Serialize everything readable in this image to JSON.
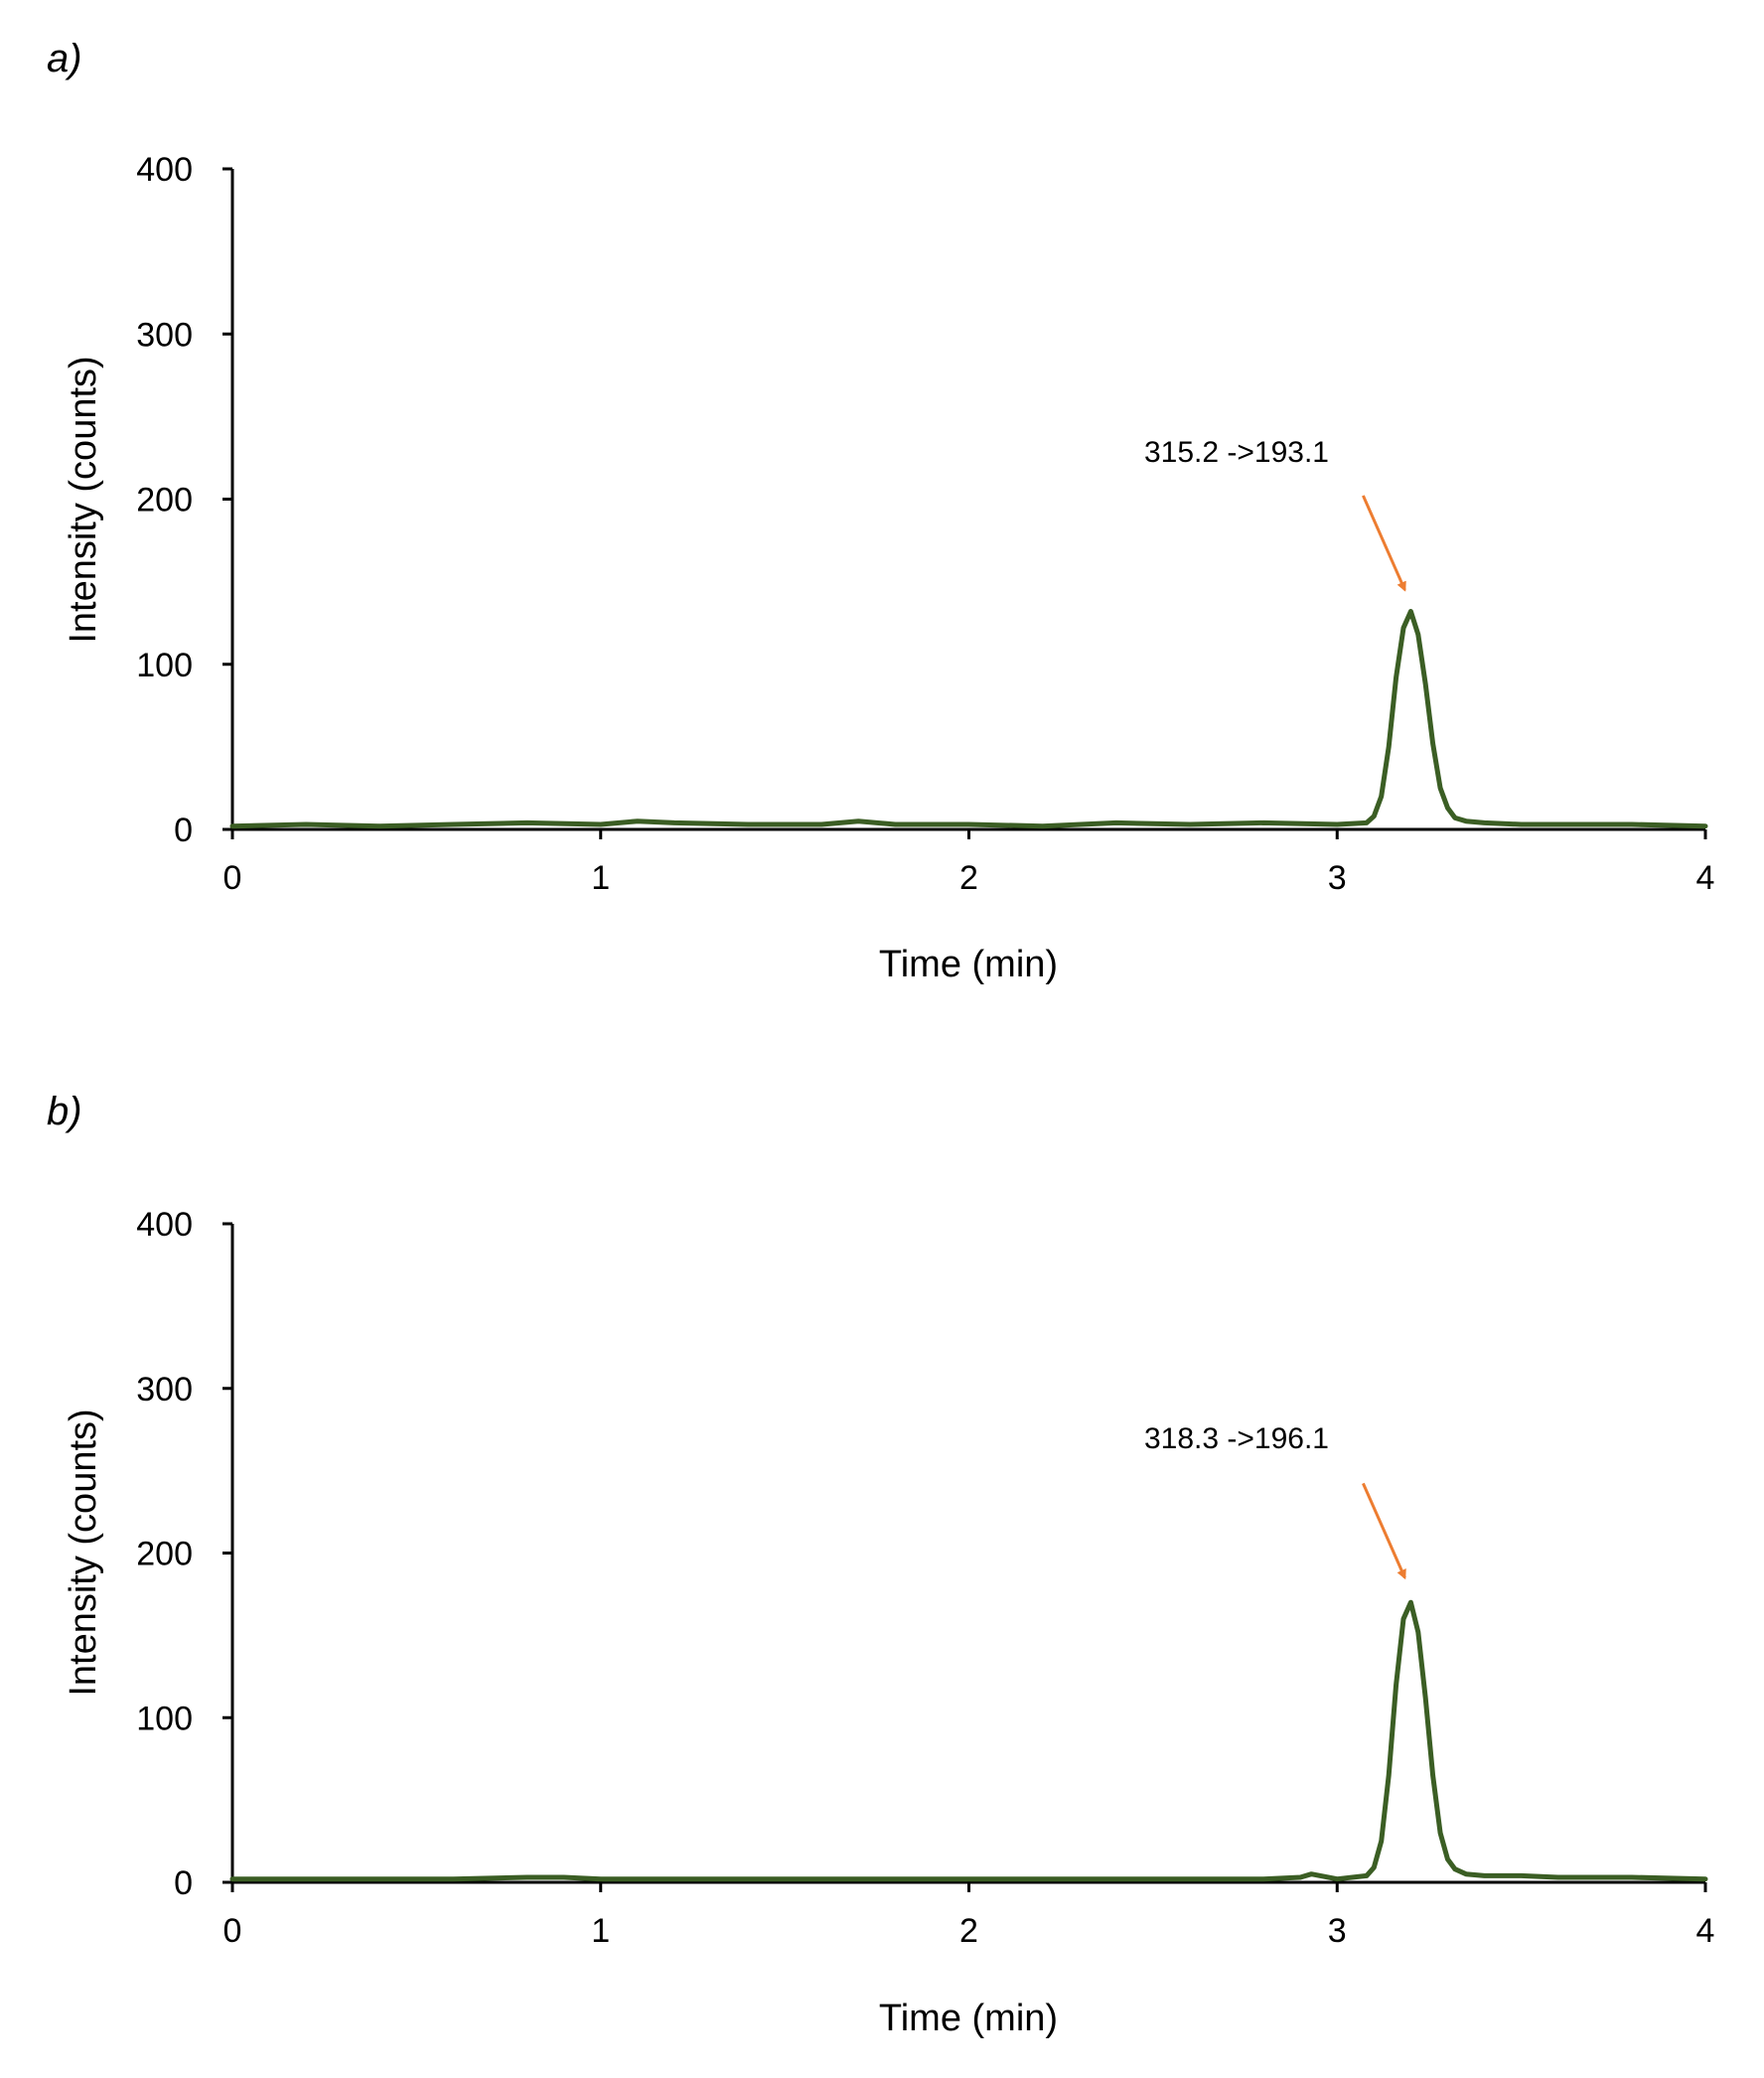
{
  "colors": {
    "trace": "#3b5e24",
    "arrow": "#ed7d31",
    "axis": "#000000"
  },
  "chart_data": [
    {
      "type": "line",
      "panel_label": "a)",
      "xlabel": "Time (min)",
      "ylabel": "Intensity (counts)",
      "xlim": [
        0,
        4
      ],
      "ylim": [
        0,
        400
      ],
      "xticks": [
        0,
        1,
        2,
        3,
        4
      ],
      "yticks": [
        0,
        100,
        200,
        300,
        400
      ],
      "grid": false,
      "series": [
        {
          "name": "315.2 ->193.1",
          "x": [
            0,
            0.2,
            0.4,
            0.6,
            0.8,
            1.0,
            1.1,
            1.2,
            1.4,
            1.6,
            1.7,
            1.8,
            2.0,
            2.2,
            2.4,
            2.6,
            2.8,
            3.0,
            3.08,
            3.1,
            3.12,
            3.14,
            3.16,
            3.18,
            3.2,
            3.22,
            3.24,
            3.26,
            3.28,
            3.3,
            3.32,
            3.35,
            3.4,
            3.5,
            3.6,
            3.8,
            4.0
          ],
          "y": [
            2,
            3,
            2,
            3,
            4,
            3,
            5,
            4,
            3,
            3,
            5,
            3,
            3,
            2,
            4,
            3,
            4,
            3,
            4,
            8,
            20,
            50,
            92,
            122,
            132,
            118,
            88,
            52,
            25,
            13,
            7,
            5,
            4,
            3,
            3,
            3,
            2
          ]
        }
      ],
      "annotation": {
        "text": "315.2 ->193.1",
        "x": 3.2,
        "y": 145
      }
    },
    {
      "type": "line",
      "panel_label": "b)",
      "xlabel": "Time (min)",
      "ylabel": "Intensity (counts)",
      "xlim": [
        0,
        4
      ],
      "ylim": [
        0,
        400
      ],
      "xticks": [
        0,
        1,
        2,
        3,
        4
      ],
      "yticks": [
        0,
        100,
        200,
        300,
        400
      ],
      "grid": false,
      "series": [
        {
          "name": "318.3 ->196.1",
          "x": [
            0,
            0.2,
            0.4,
            0.6,
            0.8,
            0.9,
            1.0,
            1.2,
            1.4,
            1.6,
            1.8,
            2.0,
            2.2,
            2.4,
            2.6,
            2.8,
            2.9,
            2.93,
            3.0,
            3.08,
            3.1,
            3.12,
            3.14,
            3.16,
            3.18,
            3.2,
            3.22,
            3.24,
            3.26,
            3.28,
            3.3,
            3.32,
            3.35,
            3.4,
            3.5,
            3.6,
            3.8,
            4.0
          ],
          "y": [
            2,
            2,
            2,
            2,
            3,
            3,
            2,
            2,
            2,
            2,
            2,
            2,
            2,
            2,
            2,
            2,
            3,
            5,
            2,
            4,
            9,
            25,
            65,
            120,
            160,
            170,
            152,
            112,
            65,
            30,
            14,
            8,
            5,
            4,
            4,
            3,
            3,
            2
          ]
        }
      ],
      "annotation": {
        "text": "318.3 ->196.1",
        "x": 3.2,
        "y": 185
      }
    }
  ]
}
